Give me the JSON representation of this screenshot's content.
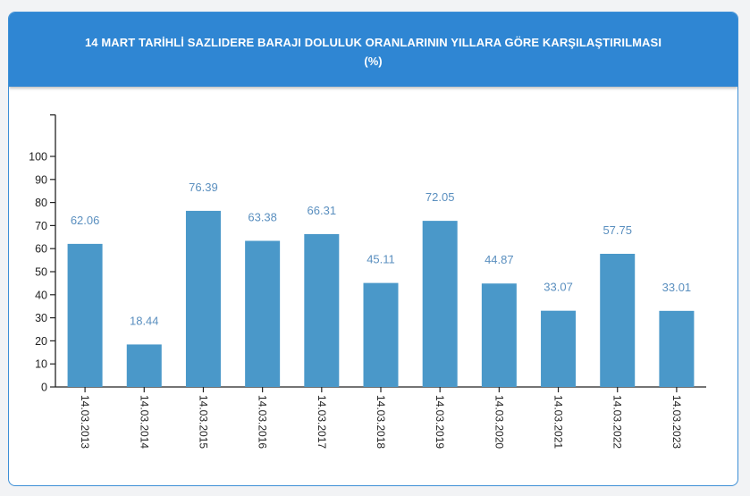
{
  "header": {
    "title": "14 MART TARİHLİ SAZLIDERE BARAJI DOLULUK ORANLARININ YILLARA GÖRE KARŞILAŞTIRILMASI",
    "subtitle": "(%)"
  },
  "colors": {
    "header_bg": "#2f86d3",
    "bar": "#4a98c9",
    "data_label": "#5a8fbf",
    "axis": "#222222"
  },
  "chart_data": {
    "type": "bar",
    "title": "14 MART TARİHLİ SAZLIDERE BARAJI DOLULUK ORANLARININ YILLARA GÖRE KARŞILAŞTIRILMASI",
    "subtitle": "(%)",
    "xlabel": "",
    "ylabel": "",
    "categories": [
      "14.03.2013",
      "14.03.2014",
      "14.03.2015",
      "14.03.2016",
      "14.03.2017",
      "14.03.2018",
      "14.03.2019",
      "14.03.2020",
      "14.03.2021",
      "14.03.2022",
      "14.03.2023"
    ],
    "values": [
      62.06,
      18.44,
      76.39,
      63.38,
      66.31,
      45.11,
      72.05,
      44.87,
      33.07,
      57.75,
      33.01
    ],
    "value_labels": [
      "62.06",
      "18.44",
      "76.39",
      "63.38",
      "66.31",
      "45.11",
      "72.05",
      "44.87",
      "33.07",
      "57.75",
      "33.01"
    ],
    "yticks": [
      0,
      10,
      20,
      30,
      40,
      50,
      60,
      70,
      80,
      90,
      100
    ],
    "ytick_labels": [
      "0",
      "10",
      "20",
      "30",
      "40",
      "50",
      "60",
      "70",
      "80",
      "90",
      "100"
    ],
    "ylim": [
      0,
      118
    ],
    "grid": false,
    "legend": "none"
  }
}
